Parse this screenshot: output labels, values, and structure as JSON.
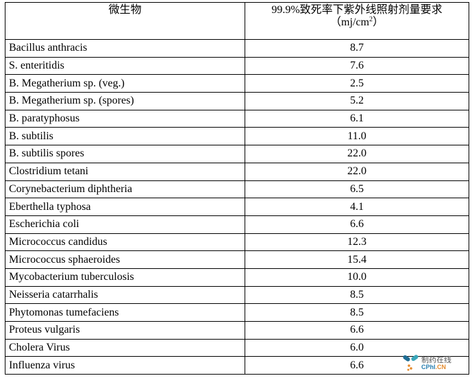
{
  "table": {
    "headers": [
      "微生物",
      "99.9%致死率下紫外线照射剂量要求"
    ],
    "unit_open": "（mj/cm",
    "unit_sup": "2",
    "unit_close": "）",
    "rows": [
      [
        "Bacillus anthracis",
        "8.7"
      ],
      [
        "S. enteritidis",
        "7.6"
      ],
      [
        "B. Megatherium sp. (veg.)",
        "2.5"
      ],
      [
        "B. Megatherium sp. (spores)",
        "5.2"
      ],
      [
        "B. paratyphosus",
        "6.1"
      ],
      [
        "B. subtilis",
        "11.0"
      ],
      [
        "B. subtilis spores",
        "22.0"
      ],
      [
        "Clostridium tetani",
        "22.0"
      ],
      [
        "Corynebacterium diphtheria",
        "6.5"
      ],
      [
        "Eberthella typhosa",
        "4.1"
      ],
      [
        "Escherichia coli",
        "6.6"
      ],
      [
        "Micrococcus candidus",
        "12.3"
      ],
      [
        "Micrococcus sphaeroides",
        "15.4"
      ],
      [
        "Mycobacterium tuberculosis",
        "10.0"
      ],
      [
        "Neisseria catarrhalis",
        "8.5"
      ],
      [
        "Phytomonas tumefaciens",
        "8.5"
      ],
      [
        "Proteus vulgaris",
        "6.6"
      ],
      [
        "Cholera Virus",
        "6.0"
      ],
      [
        "Influenza virus",
        "6.6"
      ]
    ]
  },
  "watermark": {
    "line1": "制药在线",
    "brand_a": "CPhI",
    "brand_b": ".CN",
    "colors": {
      "blue": "#2a7fb0",
      "orange": "#e58a2b",
      "teal": "#3aa6b9"
    }
  }
}
